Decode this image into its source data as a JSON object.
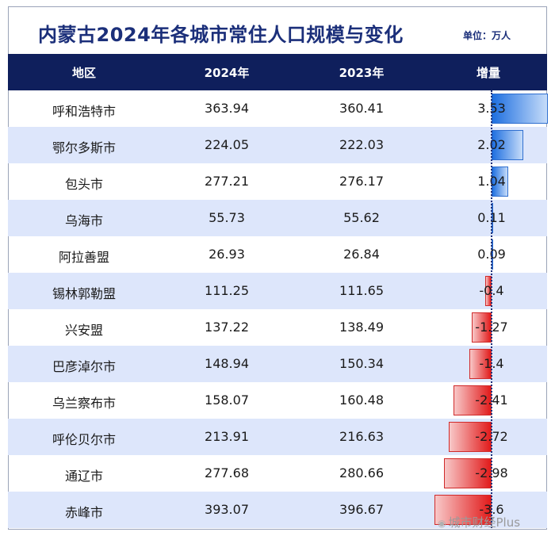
{
  "title": "内蒙古2024年各城市常住人口规模与变化",
  "unit": "单位：万人",
  "watermark": "城市财经Plus",
  "colors": {
    "header_bg": "#0f1f5c",
    "title": "#1b2f7a",
    "row_alt": "#dde6fb",
    "positive": "#1e6fe0",
    "negative": "#e11b1b"
  },
  "chart_data": {
    "type": "table",
    "columns": [
      "地区",
      "2024年",
      "2023年",
      "增量"
    ],
    "rows": [
      {
        "region": "呼和浩特市",
        "y2024": "363.94",
        "y2023": "360.41",
        "delta": "3.53"
      },
      {
        "region": "鄂尔多斯市",
        "y2024": "224.05",
        "y2023": "222.03",
        "delta": "2.02"
      },
      {
        "region": "包头市",
        "y2024": "277.21",
        "y2023": "276.17",
        "delta": "1.04"
      },
      {
        "region": "乌海市",
        "y2024": "55.73",
        "y2023": "55.62",
        "delta": "0.11"
      },
      {
        "region": "阿拉善盟",
        "y2024": "26.93",
        "y2023": "26.84",
        "delta": "0.09"
      },
      {
        "region": "锡林郭勒盟",
        "y2024": "111.25",
        "y2023": "111.65",
        "delta": "-0.4"
      },
      {
        "region": "兴安盟",
        "y2024": "137.22",
        "y2023": "138.49",
        "delta": "-1.27"
      },
      {
        "region": "巴彦淖尔市",
        "y2024": "148.94",
        "y2023": "150.34",
        "delta": "-1.4"
      },
      {
        "region": "乌兰察布市",
        "y2024": "158.07",
        "y2023": "160.48",
        "delta": "-2.41"
      },
      {
        "region": "呼伦贝尔市",
        "y2024": "213.91",
        "y2023": "216.63",
        "delta": "-2.72"
      },
      {
        "region": "通辽市",
        "y2024": "277.68",
        "y2023": "280.66",
        "delta": "-2.98"
      },
      {
        "region": "赤峰市",
        "y2024": "393.07",
        "y2023": "396.67",
        "delta": "-3.6"
      }
    ]
  }
}
